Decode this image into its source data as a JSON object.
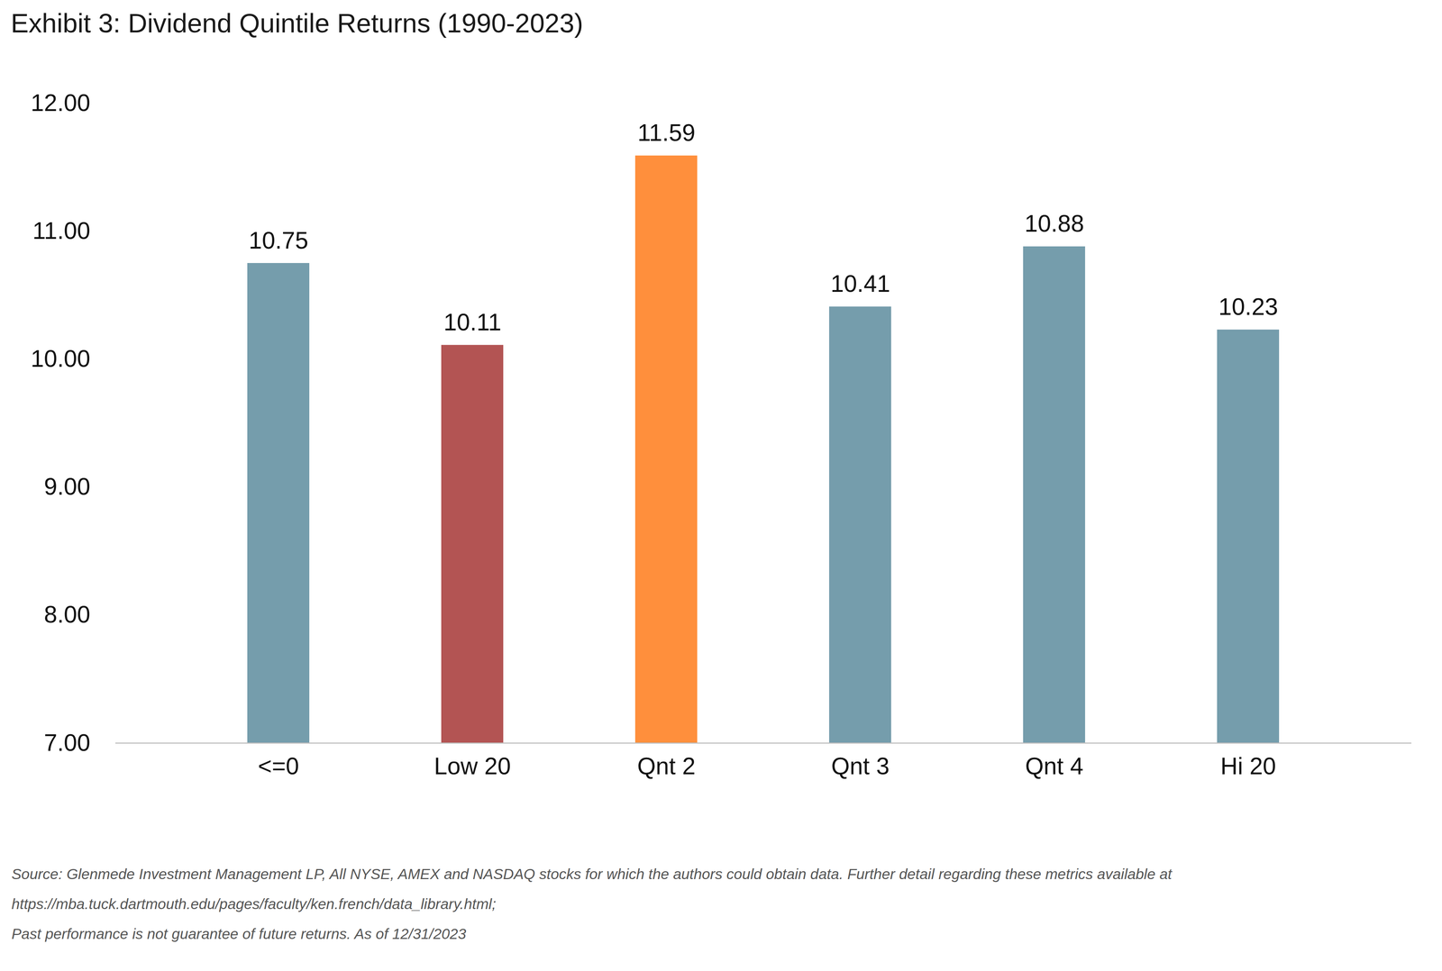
{
  "chart_data": {
    "type": "bar",
    "title": "Exhibit 3: Dividend Quintile Returns (1990-2023)",
    "categories": [
      "<=0",
      "Low 20",
      "Qnt 2",
      "Qnt 3",
      "Qnt 4",
      "Hi 20"
    ],
    "values": [
      10.75,
      10.11,
      11.59,
      10.41,
      10.88,
      10.23
    ],
    "colors": [
      "#759dac",
      "#b35453",
      "#ff8f3c",
      "#759dac",
      "#759dac",
      "#759dac"
    ],
    "ylim": [
      7,
      12
    ],
    "yticks": [
      {
        "value": 7,
        "label": "7.00"
      },
      {
        "value": 8,
        "label": "8.00"
      },
      {
        "value": 9,
        "label": "9.00"
      },
      {
        "value": 10,
        "label": "10.00"
      },
      {
        "value": 11,
        "label": "11.00"
      },
      {
        "value": 12,
        "label": "12.00"
      }
    ],
    "grid": false,
    "data_labels": true,
    "caption": [
      "Source: Glenmede Investment Management LP, All NYSE, AMEX and NASDAQ stocks for which the authors could obtain data.  Further detail regarding these metrics available at",
      "https://mba.tuck.dartmouth.edu/pages/faculty/ken.french/data_library.html;",
      "Past performance is not guarantee of future returns. As of 12/31/2023"
    ]
  }
}
